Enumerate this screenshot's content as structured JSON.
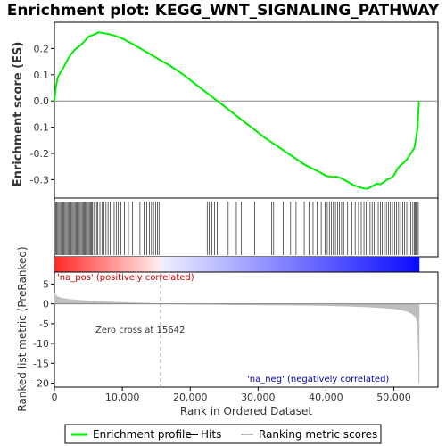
{
  "chart_data": {
    "type": "line",
    "title": "Enrichment plot: KEGG_WNT_SIGNALING_PATHWAY",
    "colors": {
      "enrichment_line": "#00ee00",
      "hit_line": "#000000",
      "metric_fill": "#bebebe",
      "pos_band": "#ff0000",
      "neg_band": "#0000ff",
      "zero_line": "#888888"
    },
    "es_panel": {
      "ylabel": "Enrichment score (ES)",
      "ylim": [
        -0.37,
        0.3
      ],
      "yticks": [
        -0.3,
        -0.2,
        -0.1,
        0.0,
        0.1,
        0.2
      ],
      "ytick_labels": [
        "-0.3",
        "-0.2",
        "-0.1",
        "0.0",
        "0.1",
        "0.2"
      ],
      "grid": false,
      "series": [
        {
          "name": "Enrichment profile",
          "x": [
            0,
            200,
            500,
            800,
            1200,
            1600,
            2000,
            2500,
            3000,
            3500,
            4000,
            4500,
            5000,
            5500,
            6000,
            6500,
            7000,
            8000,
            9000,
            10000,
            11000,
            12000,
            13000,
            14000,
            15000,
            15642,
            17000,
            19000,
            21000,
            23000,
            25000,
            27000,
            29000,
            31000,
            33000,
            35000,
            37000,
            39000,
            40000,
            41000,
            41500,
            42000,
            43000,
            44000,
            45000,
            46000,
            46500,
            47000,
            47500,
            48000,
            48500,
            49000,
            49500,
            50000,
            50500,
            51000,
            51500,
            52000,
            52500,
            53000,
            53300,
            53500,
            53600,
            53700
          ],
          "values": [
            0.0,
            0.05,
            0.09,
            0.105,
            0.12,
            0.14,
            0.16,
            0.18,
            0.195,
            0.205,
            0.215,
            0.23,
            0.245,
            0.25,
            0.255,
            0.262,
            0.26,
            0.255,
            0.248,
            0.238,
            0.225,
            0.21,
            0.195,
            0.18,
            0.165,
            0.155,
            0.135,
            0.1,
            0.06,
            0.02,
            -0.02,
            -0.06,
            -0.1,
            -0.14,
            -0.175,
            -0.21,
            -0.245,
            -0.27,
            -0.285,
            -0.29,
            -0.288,
            -0.292,
            -0.305,
            -0.32,
            -0.33,
            -0.335,
            -0.33,
            -0.322,
            -0.315,
            -0.318,
            -0.31,
            -0.3,
            -0.295,
            -0.285,
            -0.26,
            -0.245,
            -0.235,
            -0.22,
            -0.2,
            -0.18,
            -0.14,
            -0.1,
            -0.05,
            0.0
          ]
        }
      ]
    },
    "hits": [
      200,
      350,
      500,
      650,
      800,
      950,
      1100,
      1250,
      1400,
      1550,
      1700,
      1850,
      2000,
      2150,
      2300,
      2450,
      2600,
      2750,
      2900,
      3050,
      3200,
      3350,
      3500,
      3650,
      3800,
      3950,
      4100,
      4250,
      4400,
      4550,
      4700,
      4850,
      5000,
      5150,
      5300,
      5450,
      5600,
      5800,
      6000,
      6200,
      6400,
      6700,
      7000,
      7300,
      7600,
      7900,
      8200,
      8500,
      8800,
      9100,
      9400,
      9800,
      10300,
      10900,
      11500,
      12000,
      12600,
      13200,
      13600,
      14000,
      14300,
      14600,
      14900,
      15200,
      15400,
      22500,
      22800,
      23200,
      23600,
      24000,
      25600,
      26800,
      27500,
      29500,
      32000,
      32300,
      33700,
      34800,
      35600,
      36800,
      37500,
      38100,
      38700,
      39300,
      39900,
      40200,
      40500,
      40800,
      41100,
      41400,
      41700,
      42000,
      42300,
      42600,
      43200,
      43800,
      44300,
      44800,
      45200,
      45600,
      45900,
      46200,
      46500,
      46800,
      47100,
      47400,
      47700,
      48000,
      48300,
      48600,
      48900,
      49200,
      49500,
      49800,
      50100,
      50400,
      50700,
      51000,
      51300,
      51600,
      51900,
      52200,
      52500,
      52800,
      53000,
      53150,
      53300,
      53450,
      53600
    ],
    "metric_panel": {
      "ylabel": "Ranked list metric (PreRanked)",
      "ylim": [
        -21,
        8
      ],
      "yticks": [
        5,
        0,
        -5,
        -10,
        -15,
        -20
      ],
      "ytick_labels": [
        "5",
        "0",
        "-5",
        "-10",
        "-15",
        "-20"
      ],
      "x": [
        0,
        100,
        500,
        1000,
        2000,
        4000,
        6000,
        8000,
        10000,
        12000,
        15642,
        20000,
        25000,
        30000,
        35000,
        40000,
        43000,
        46000,
        48000,
        50000,
        51000,
        52000,
        52800,
        53300,
        53500,
        53650,
        53700
      ],
      "values": [
        2.8,
        2.2,
        1.7,
        1.4,
        1.1,
        0.8,
        0.55,
        0.4,
        0.28,
        0.18,
        0.0,
        -0.08,
        -0.15,
        -0.22,
        -0.3,
        -0.4,
        -0.55,
        -0.75,
        -0.95,
        -1.2,
        -1.5,
        -1.9,
        -2.6,
        -3.5,
        -5.0,
        -12.0,
        -20.0
      ],
      "annotations": {
        "pos_label": "'na_pos' (positively correlated)",
        "neg_label": "'na_neg' (negatively correlated)",
        "zero_cross": "Zero cross at 15642",
        "zero_cross_x": 15642
      }
    },
    "xlabel": "Rank in Ordered Dataset",
    "xlim": [
      0,
      56500
    ],
    "xticks": [
      0,
      10000,
      20000,
      30000,
      40000,
      50000
    ],
    "xtick_labels": [
      "0",
      "10,000",
      "20,000",
      "30,000",
      "40,000",
      "50,000"
    ],
    "n_genes": 53700,
    "legend": {
      "placement": "bottom",
      "items": [
        {
          "label": "Enrichment profile",
          "color": "#00ee00"
        },
        {
          "label": "Hits",
          "color": "#000000"
        },
        {
          "label": "Ranking metric scores",
          "color": "#bebebe"
        }
      ]
    }
  }
}
